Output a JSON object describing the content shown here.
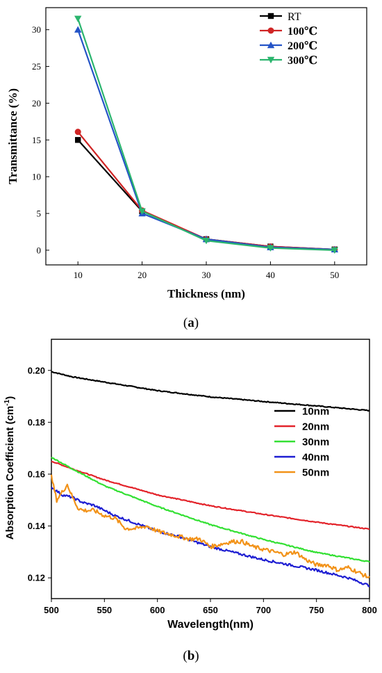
{
  "panel_a": {
    "caption_open": "(",
    "caption_letter": "a",
    "caption_close": ")"
  },
  "panel_b": {
    "caption_open": "(",
    "caption_letter": "b",
    "caption_close": ")"
  },
  "chart_data": [
    {
      "type": "line",
      "xlabel": "Thickness (nm)",
      "ylabel": "Transmittance (%)",
      "x": [
        10,
        20,
        30,
        40,
        50
      ],
      "xlim": [
        5,
        55
      ],
      "ylim": [
        -2,
        33
      ],
      "xticks": [
        10,
        20,
        30,
        40,
        50
      ],
      "yticks": [
        0,
        5,
        10,
        15,
        20,
        25,
        30
      ],
      "legend_position": "top-right",
      "series": [
        {
          "name": "RT",
          "values": [
            15.0,
            5.3,
            1.5,
            0.5,
            0.1
          ],
          "color": "#000000",
          "marker": "square"
        },
        {
          "name": "100℃",
          "values": [
            16.1,
            5.4,
            1.5,
            0.5,
            0.1
          ],
          "color": "#d02525",
          "marker": "circle"
        },
        {
          "name": "200℃",
          "values": [
            30.0,
            5.0,
            1.5,
            0.4,
            0.1
          ],
          "color": "#2554c7",
          "marker": "triangle-up"
        },
        {
          "name": "300℃",
          "values": [
            31.5,
            5.3,
            1.3,
            0.3,
            0.0
          ],
          "color": "#2bb56e",
          "marker": "triangle-down"
        }
      ]
    },
    {
      "type": "line",
      "xlabel": "Wavelength(nm)",
      "ylabel": "Absorption Coefficient (cm",
      "ylabel_sup": "-1",
      "ylabel_close": ")",
      "xlim": [
        500,
        800
      ],
      "ylim": [
        0.112,
        0.212
      ],
      "xticks": [
        500,
        550,
        600,
        650,
        700,
        750,
        800
      ],
      "yticks": [
        "0.12",
        "0.14",
        "0.16",
        "0.18",
        "0.20"
      ],
      "legend_position": "right",
      "series": [
        {
          "name": "10nm",
          "color": "#000000",
          "x": [
            500,
            520,
            550,
            600,
            650,
            700,
            750,
            800
          ],
          "values": [
            0.1995,
            0.1975,
            0.1955,
            0.1922,
            0.1898,
            0.188,
            0.1863,
            0.1845
          ]
        },
        {
          "name": "20nm",
          "color": "#e3242b",
          "x": [
            500,
            520,
            550,
            600,
            650,
            700,
            750,
            800
          ],
          "values": [
            0.165,
            0.162,
            0.1578,
            0.152,
            0.1478,
            0.1445,
            0.1415,
            0.1388
          ]
        },
        {
          "name": "30nm",
          "color": "#33e033",
          "x": [
            500,
            520,
            550,
            600,
            650,
            700,
            750,
            800
          ],
          "values": [
            0.1665,
            0.162,
            0.1555,
            0.1475,
            0.1405,
            0.1348,
            0.1298,
            0.1262
          ]
        },
        {
          "name": "40nm",
          "color": "#1e1ed2",
          "x": [
            500,
            510,
            520,
            530,
            540,
            560,
            580,
            600,
            620,
            650,
            680,
            700,
            750,
            780,
            800
          ],
          "values": [
            0.155,
            0.152,
            0.151,
            0.149,
            0.148,
            0.144,
            0.141,
            0.138,
            0.136,
            0.132,
            0.129,
            0.127,
            0.123,
            0.12,
            0.117
          ]
        },
        {
          "name": "50nm",
          "color": "#f29218",
          "x": [
            500,
            505,
            510,
            515,
            520,
            525,
            530,
            540,
            550,
            560,
            570,
            580,
            590,
            600,
            610,
            620,
            630,
            640,
            650,
            660,
            670,
            680,
            690,
            700,
            710,
            720,
            730,
            740,
            750,
            760,
            770,
            780,
            790,
            800
          ],
          "values": [
            0.159,
            0.15,
            0.153,
            0.156,
            0.151,
            0.147,
            0.146,
            0.146,
            0.144,
            0.143,
            0.139,
            0.139,
            0.14,
            0.138,
            0.137,
            0.136,
            0.135,
            0.135,
            0.132,
            0.133,
            0.134,
            0.134,
            0.132,
            0.131,
            0.13,
            0.129,
            0.13,
            0.127,
            0.125,
            0.125,
            0.123,
            0.124,
            0.122,
            0.12
          ]
        }
      ]
    }
  ]
}
